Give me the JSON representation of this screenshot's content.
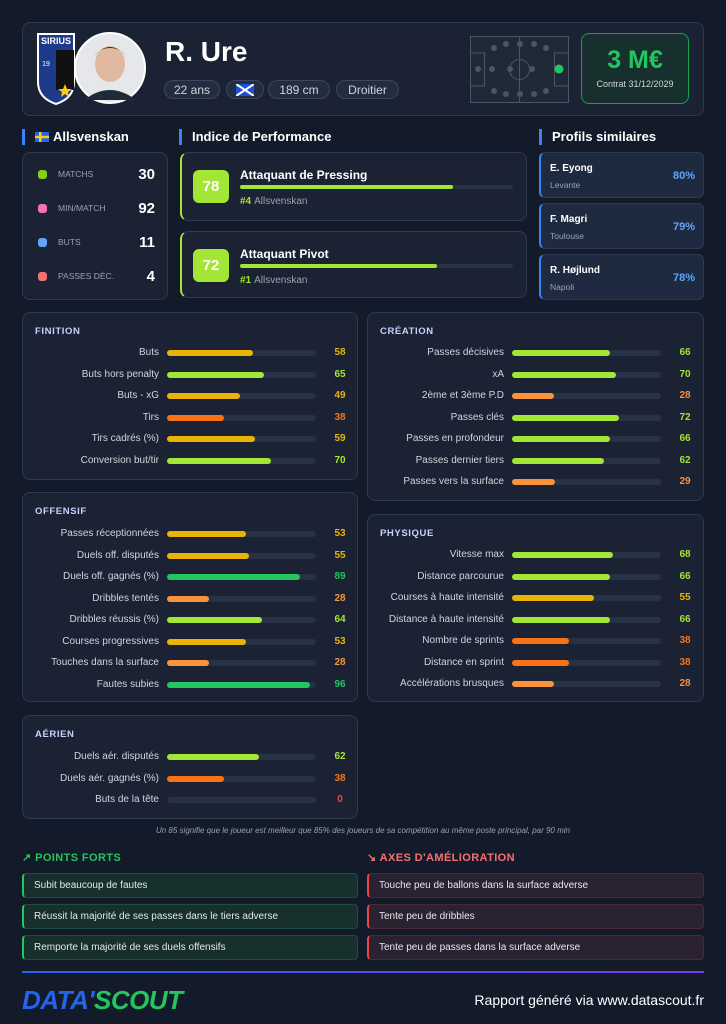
{
  "header": {
    "badge": "SIRIUS",
    "badge_year": "19",
    "name": "R. Ure",
    "tags": [
      "22 ans",
      "189 cm",
      "Droitier"
    ],
    "market_value": "3 M€",
    "contract": "Contrat 31/12/2029"
  },
  "league": {
    "title": "Allsvenskan",
    "stats": [
      {
        "label": "MATCHS",
        "value": 30
      },
      {
        "label": "MIN/MATCH",
        "value": 92
      },
      {
        "label": "BUTS",
        "value": 11
      },
      {
        "label": "PASSES DÉC.",
        "value": 4
      }
    ]
  },
  "performance": {
    "title": "Indice de Performance",
    "items": [
      {
        "score": 78,
        "role": "Attaquant de Pressing",
        "rank": "#4",
        "league": "Allsvenskan"
      },
      {
        "score": 72,
        "role": "Attaquant Pivot",
        "rank": "#1",
        "league": "Allsvenskan"
      }
    ]
  },
  "similar": {
    "title": "Profils similaires",
    "items": [
      {
        "name": "E. Eyong",
        "club": "Levante",
        "match": "80%"
      },
      {
        "name": "F. Magri",
        "club": "Toulouse",
        "match": "79%"
      },
      {
        "name": "R. Højlund",
        "club": "Napoli",
        "match": "78%"
      }
    ]
  },
  "sections": {
    "finition": {
      "title": "FINITION",
      "metrics": [
        {
          "label": "Buts",
          "value": 58
        },
        {
          "label": "Buts hors penalty",
          "value": 65
        },
        {
          "label": "Buts - xG",
          "value": 49
        },
        {
          "label": "Tirs",
          "value": 38
        },
        {
          "label": "Tirs cadrés (%)",
          "value": 59
        },
        {
          "label": "Conversion but/tir",
          "value": 70
        }
      ]
    },
    "creation": {
      "title": "CRÉATION",
      "metrics": [
        {
          "label": "Passes décisives",
          "value": 66
        },
        {
          "label": "xA",
          "value": 70
        },
        {
          "label": "2ème et 3ème P.D",
          "value": 28
        },
        {
          "label": "Passes clés",
          "value": 72
        },
        {
          "label": "Passes en profondeur",
          "value": 66
        },
        {
          "label": "Passes dernier tiers",
          "value": 62
        },
        {
          "label": "Passes vers la surface",
          "value": 29
        }
      ]
    },
    "offensif": {
      "title": "OFFENSIF",
      "metrics": [
        {
          "label": "Passes réceptionnées",
          "value": 53
        },
        {
          "label": "Duels off. disputés",
          "value": 55
        },
        {
          "label": "Duels off. gagnés (%)",
          "value": 89
        },
        {
          "label": "Dribbles tentés",
          "value": 28
        },
        {
          "label": "Dribbles réussis (%)",
          "value": 64
        },
        {
          "label": "Courses progressives",
          "value": 53
        },
        {
          "label": "Touches dans la surface",
          "value": 28
        },
        {
          "label": "Fautes subies",
          "value": 96
        }
      ]
    },
    "physique": {
      "title": "PHYSIQUE",
      "metrics": [
        {
          "label": "Vitesse max",
          "value": 68
        },
        {
          "label": "Distance parcourue",
          "value": 66
        },
        {
          "label": "Courses à haute intensité",
          "value": 55
        },
        {
          "label": "Distance à haute intensité",
          "value": 66
        },
        {
          "label": "Nombre de sprints",
          "value": 38
        },
        {
          "label": "Distance en sprint",
          "value": 38
        },
        {
          "label": "Accélérations brusques",
          "value": 28
        }
      ]
    },
    "aerien": {
      "title": "AÉRIEN",
      "metrics": [
        {
          "label": "Duels aér. disputés",
          "value": 62
        },
        {
          "label": "Duels aér. gagnés (%)",
          "value": 38
        },
        {
          "label": "Buts de la tête",
          "value": 0
        }
      ]
    }
  },
  "note": "Un 85 signifie que le joueur est meilleur que 85% des joueurs de sa compétition au même poste principal, par 90 min",
  "strengths": {
    "title": "POINTS FORTS",
    "items": [
      "Subit beaucoup de fautes",
      "Réussit la majorité de ses passes dans le tiers adverse",
      "Remporte la majorité de ses duels offensifs"
    ]
  },
  "improvements": {
    "title": "AXES D'AMÉLIORATION",
    "items": [
      "Touche peu de ballons dans la surface adverse",
      "Tente peu de dribbles",
      "Tente peu de passes dans la surface adverse"
    ]
  },
  "footer": {
    "brand_part1": "DATA'",
    "brand_part2": "SCOUT",
    "generated": "Rapport généré via www.datascout.fr"
  }
}
